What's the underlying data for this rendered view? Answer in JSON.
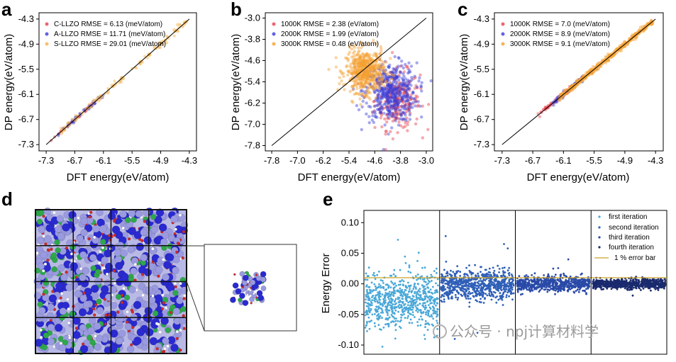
{
  "chart_data": [
    {
      "id": "a",
      "type": "scatter",
      "letter": "a",
      "xlabel": "DFT energy(eV/atom)",
      "ylabel": "DP energy(eV/atom)",
      "xlim": [
        -7.45,
        -4.15
      ],
      "ylim": [
        -7.45,
        -4.15
      ],
      "xticks": [
        "-7.3",
        "-6.7",
        "-6.1",
        "-5.5",
        "-4.9",
        "-4.3"
      ],
      "yticks": [
        "-7.3",
        "-6.7",
        "-6.1",
        "-5.5",
        "-4.9",
        "-4.3"
      ],
      "tick_values": [
        -7.3,
        -6.7,
        -6.1,
        -5.5,
        -4.9,
        -4.3
      ],
      "diagonal": [
        [
          -7.3,
          -7.3
        ],
        [
          -4.3,
          -4.3
        ]
      ],
      "series": [
        {
          "name": "C-LLZO RMSE = 6.13 (meV/atom)",
          "color": "#e8414a",
          "kind": "diag",
          "xmin": -7.2,
          "xmax": -6.3,
          "spread": 0.02,
          "n": 35
        },
        {
          "name": "A-LLZO RMSE = 11.71 (meV/atom)",
          "color": "#3b3fd8",
          "kind": "diag",
          "xmin": -7.05,
          "xmax": -6.1,
          "spread": 0.025,
          "n": 45
        },
        {
          "name": "S-LLZO RMSE = 29.01 (meV/atom)",
          "color": "#f5b14a",
          "kind": "diag",
          "xmin": -7.0,
          "xmax": -4.35,
          "spread": 0.04,
          "n": 120
        }
      ]
    },
    {
      "id": "b",
      "type": "scatter",
      "letter": "b",
      "xlabel": "DFT energy(eV/atom)",
      "ylabel": "DP energy(eV/atom)",
      "xlim": [
        -8.0,
        -2.8
      ],
      "ylim": [
        -8.0,
        -2.8
      ],
      "xticks": [
        "-7.8",
        "-7.0",
        "-6.2",
        "-5.4",
        "-4.6",
        "-3.8",
        "-3.0"
      ],
      "yticks": [
        "-7.8",
        "-7.0",
        "-6.2",
        "-5.4",
        "-4.6",
        "-3.8",
        "-3.0"
      ],
      "tick_values": [
        -7.8,
        -7.0,
        -6.2,
        -5.4,
        -4.6,
        -3.8,
        -3.0
      ],
      "diagonal": [
        [
          -7.8,
          -7.8
        ],
        [
          -3.0,
          -3.0
        ]
      ],
      "series": [
        {
          "name": "1000K RMSE = 2.38 (eV/atom)",
          "color": "#e8414a",
          "kind": "cloud",
          "cx": -3.9,
          "cy": -6.1,
          "sx": 0.35,
          "sy": 0.55,
          "n": 260
        },
        {
          "name": "2000K RMSE = 1.99 (eV/atom)",
          "color": "#3b3fd8",
          "kind": "cloud",
          "cx": -4.1,
          "cy": -5.8,
          "sx": 0.4,
          "sy": 0.55,
          "n": 500
        },
        {
          "name": "3000K RMSE = 0.48 (eV/atom)",
          "color": "#f5a030",
          "kind": "cloud",
          "cx": -4.9,
          "cy": -5.0,
          "sx": 0.3,
          "sy": 0.4,
          "n": 520
        }
      ]
    },
    {
      "id": "c",
      "type": "scatter",
      "letter": "c",
      "xlabel": "DFT energy(eV/atom)",
      "ylabel": "DP energy(eV/atom)",
      "xlim": [
        -7.45,
        -4.15
      ],
      "ylim": [
        -7.45,
        -4.15
      ],
      "xticks": [
        "-7.3",
        "-6.7",
        "-6.1",
        "-5.5",
        "-4.9",
        "-4.3"
      ],
      "yticks": [
        "-7.3",
        "-6.7",
        "-6.1",
        "-5.5",
        "-4.9",
        "-4.3"
      ],
      "tick_values": [
        -7.3,
        -6.7,
        -6.1,
        -5.5,
        -4.9,
        -4.3
      ],
      "diagonal": [
        [
          -7.3,
          -7.3
        ],
        [
          -4.3,
          -4.3
        ]
      ],
      "series": [
        {
          "name": "1000K RMSE = 7.0 (meV/atom)",
          "color": "#e8414a",
          "kind": "diag",
          "xmin": -6.6,
          "xmax": -5.9,
          "spread": 0.03,
          "n": 60
        },
        {
          "name": "2000K RMSE = 8.9 (meV/atom)",
          "color": "#3b3fd8",
          "kind": "diag",
          "xmin": -6.3,
          "xmax": -5.7,
          "spread": 0.03,
          "n": 60
        },
        {
          "name": "3000K RMSE = 9.1 (meV/atom)",
          "color": "#f5a030",
          "kind": "diag",
          "xmin": -6.2,
          "xmax": -4.35,
          "spread": 0.035,
          "n": 420
        }
      ]
    },
    {
      "id": "e",
      "type": "scatter",
      "letter": "e",
      "ylabel": "Energy Error",
      "ylim": [
        -0.115,
        0.12
      ],
      "yticks": [
        "0.10",
        "0.05",
        "0.00",
        "-0.05",
        "-0.10"
      ],
      "tick_values": [
        0.1,
        0.05,
        0.0,
        -0.05,
        -0.1
      ],
      "error_bar": 0.01,
      "series": [
        {
          "name": "first iteration",
          "color": "#4aa8d8",
          "segment": 0,
          "mean": -0.028,
          "sd": 0.022,
          "n": 700,
          "outliers": [
            [
              0.45,
              0.072
            ],
            [
              0.2,
              0.02
            ],
            [
              0.6,
              0.03
            ]
          ]
        },
        {
          "name": "second iteration",
          "color": "#2f5fb8",
          "segment": 1,
          "mean": -0.002,
          "sd": 0.012,
          "n": 750,
          "outliers": [
            [
              0.08,
              0.078
            ],
            [
              0.85,
              0.065
            ],
            [
              0.9,
              0.058
            ],
            [
              0.2,
              -0.09
            ],
            [
              0.5,
              -0.08
            ]
          ]
        },
        {
          "name": "third iteration",
          "color": "#2a4aa8",
          "segment": 2,
          "mean": 0.0,
          "sd": 0.006,
          "n": 650,
          "outliers": [
            [
              0.7,
              0.04
            ],
            [
              0.5,
              0.025
            ]
          ]
        },
        {
          "name": "fourth iteration",
          "color": "#1a2a6e",
          "segment": 3,
          "mean": 0.0,
          "sd": 0.004,
          "n": 700,
          "outliers": []
        }
      ],
      "errorbar_label": "1 % error bar",
      "errorbar_color": "#c9a227"
    }
  ],
  "panel_d": {
    "letter": "d"
  },
  "watermark": "公众号 · npj计算材料学"
}
